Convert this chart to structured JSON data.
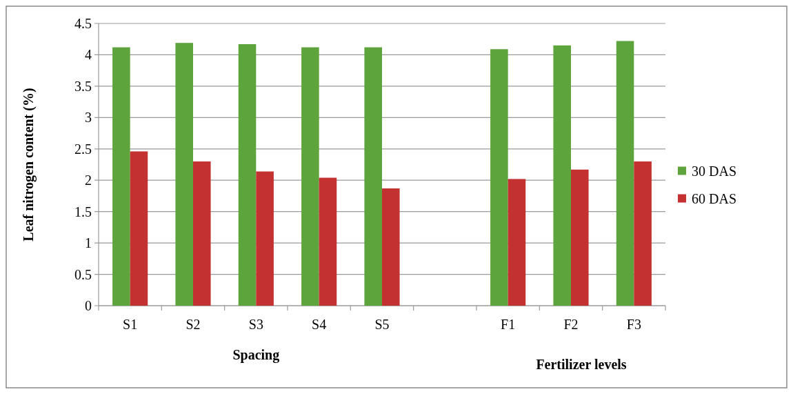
{
  "chart_data": {
    "type": "bar",
    "ylabel": "Leaf nitrogen content (%)",
    "xlabel": "Spacing",
    "annotations": [
      "Fertilizer levels"
    ],
    "categories": [
      "S1",
      "S2",
      "S3",
      "S4",
      "S5",
      null,
      "F1",
      "F2",
      "F3"
    ],
    "series": [
      {
        "name": "30 DAS",
        "color": "#5ea43d",
        "values": [
          4.12,
          4.19,
          4.17,
          4.12,
          4.12,
          null,
          4.09,
          4.15,
          4.22
        ]
      },
      {
        "name": "60 DAS",
        "color": "#c33230",
        "values": [
          2.46,
          2.3,
          2.14,
          2.04,
          1.87,
          null,
          2.02,
          2.17,
          2.3
        ]
      }
    ],
    "ylim": [
      0,
      4.5
    ],
    "yticks": [
      0,
      0.5,
      1,
      1.5,
      2,
      2.5,
      3,
      3.5,
      4,
      4.5
    ],
    "grid": "y",
    "legend": "right"
  }
}
